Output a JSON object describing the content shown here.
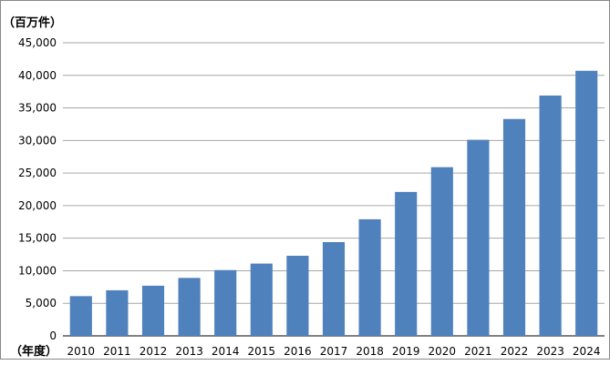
{
  "chart_data": {
    "type": "bar",
    "ylabel": "（百万件）",
    "xlabel": "（年度）",
    "categories": [
      "2010",
      "2011",
      "2012",
      "2013",
      "2014",
      "2015",
      "2016",
      "2017",
      "2018",
      "2019",
      "2020",
      "2021",
      "2022",
      "2023",
      "2024"
    ],
    "values": [
      6100,
      7000,
      7700,
      8900,
      10100,
      11100,
      12300,
      14400,
      17900,
      22100,
      25900,
      30100,
      33300,
      36900,
      40700
    ],
    "ylim": [
      0,
      45000
    ],
    "yticks": [
      0,
      5000,
      10000,
      15000,
      20000,
      25000,
      30000,
      35000,
      40000,
      45000
    ],
    "ytick_labels": [
      "0",
      "5,000",
      "10,000",
      "15,000",
      "20,000",
      "25,000",
      "30,000",
      "35,000",
      "40,000",
      "45,000"
    ],
    "grid": true,
    "legend": "none",
    "bar_color": "#4f81bd"
  }
}
